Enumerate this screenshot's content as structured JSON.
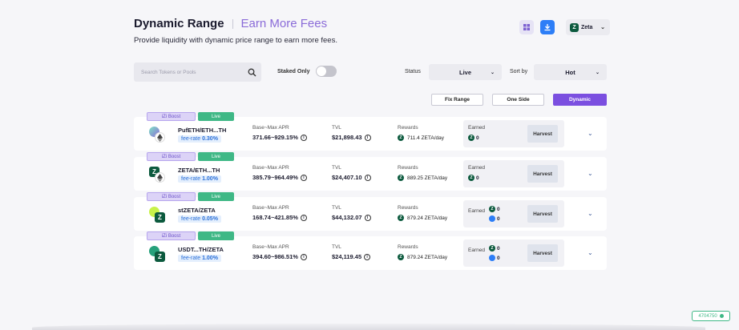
{
  "header": {
    "title": "Dynamic Range",
    "subtitle": "Earn More Fees",
    "description": "Provide liquidity with dynamic price range to earn more fees."
  },
  "chain": {
    "name": "Zeta",
    "logo": "Z"
  },
  "filters": {
    "search_placeholder": "Search Tokens or Pools",
    "staked_only_label": "Staked Only",
    "staked_only": false,
    "status_label": "Status",
    "status_value": "Live",
    "sort_label": "Sort by",
    "sort_value": "Hot"
  },
  "range_tabs": {
    "fix": "Fix Range",
    "one_side": "One Side",
    "dynamic": "Dynamic",
    "active": "dynamic"
  },
  "labels": {
    "boost": "iZi Boost",
    "live": "Live",
    "fee_prefix": "fee-rate",
    "apr": "Base~Max APR",
    "tvl": "TVL",
    "rewards": "Rewards",
    "earned": "Earned",
    "harvest": "Harvest"
  },
  "pools": [
    {
      "pair": "PufETH/ETH...TH",
      "fee": "0.30%",
      "apr": "371.66~929.15%",
      "tvl": "$21,898.43",
      "reward": "711.4 ZETA/day",
      "earned_zeta": "0",
      "earned_second": null
    },
    {
      "pair": "ZETA/ETH...TH",
      "fee": "1.00%",
      "apr": "385.79~964.49%",
      "tvl": "$24,407.10",
      "reward": "889.25 ZETA/day",
      "earned_zeta": "0",
      "earned_second": null
    },
    {
      "pair": "stZETA/ZETA",
      "fee": "0.05%",
      "apr": "168.74~421.85%",
      "tvl": "$44,132.07",
      "reward": "879.24 ZETA/day",
      "earned_zeta": "0",
      "earned_second": "0"
    },
    {
      "pair": "USDT...TH/ZETA",
      "fee": "1.00%",
      "apr": "394.60~986.51%",
      "tvl": "$24,119.45",
      "reward": "879.24 ZETA/day",
      "earned_zeta": "0",
      "earned_second": "0"
    }
  ],
  "block_number": "4704750",
  "colors": {
    "accent": "#7b4fe0",
    "live": "#3fb886",
    "zeta": "#0c5a3e",
    "fee": "#2a6fd8"
  }
}
